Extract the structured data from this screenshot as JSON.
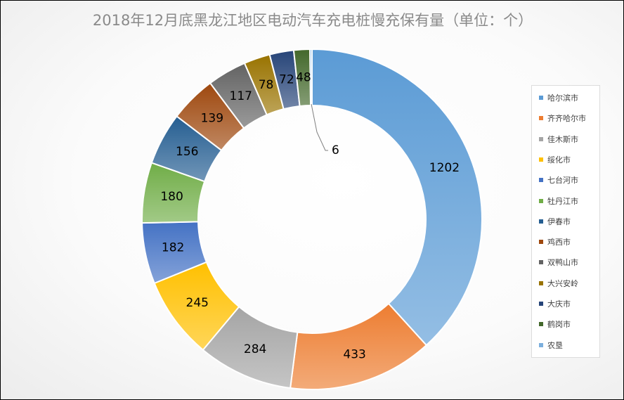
{
  "chart_data": {
    "type": "pie",
    "style": "doughnut",
    "title": "2018年12月底黑龙江地区电动汽车充电桩慢充保有量（单位：个）",
    "categories": [
      "哈尔滨市",
      "齐齐哈尔市",
      "佳木斯市",
      "绥化市",
      "七台河市",
      "牡丹江市",
      "伊春市",
      "鸡西市",
      "双鸭山市",
      "大兴安岭",
      "大庆市",
      "鹤岗市",
      "农垦"
    ],
    "values": [
      1202,
      433,
      284,
      245,
      182,
      180,
      156,
      139,
      117,
      78,
      72,
      48,
      6
    ],
    "colors": [
      "#5b9bd5",
      "#ed7d31",
      "#a5a5a5",
      "#ffc000",
      "#4472c4",
      "#70ad47",
      "#255e91",
      "#9e480e",
      "#636363",
      "#997300",
      "#264478",
      "#43682b",
      "#7cafdd"
    ],
    "legend_position": "right",
    "data_labels": true
  }
}
